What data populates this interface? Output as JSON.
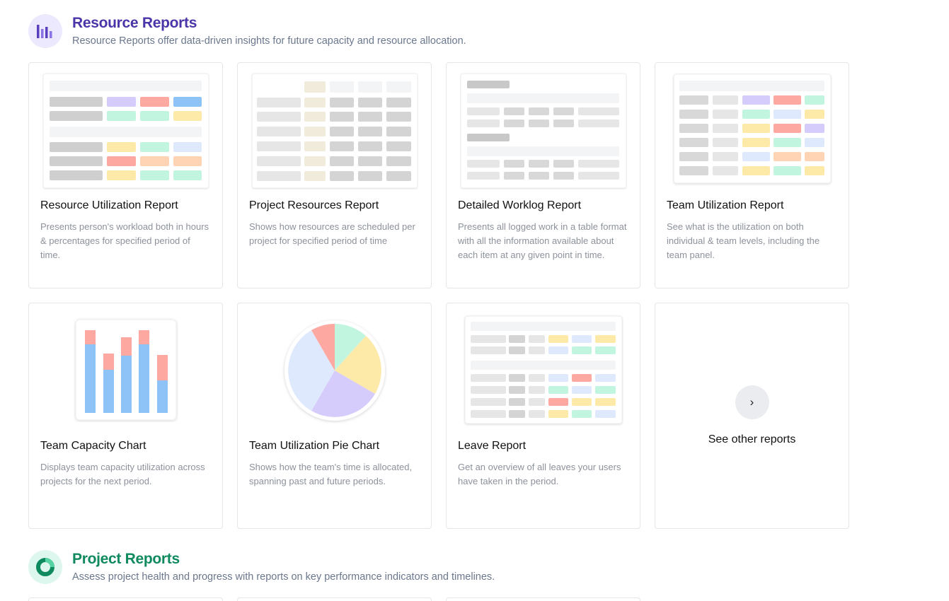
{
  "resource_section": {
    "title": "Resource Reports",
    "description": "Resource Reports offer data-driven insights for future capacity and resource allocation.",
    "title_color": "#4c35a8",
    "icon": "bar-chart-icon"
  },
  "resource_cards": [
    {
      "title": "Resource Utilization Report",
      "description": "Presents person's workload both in hours & percentages for specified period of time."
    },
    {
      "title": "Project Resources Report",
      "description": "Shows how resources are scheduled per project for specified period of time"
    },
    {
      "title": "Detailed Worklog Report",
      "description": "Presents all logged work in a table format with all the information available about each item at any given point in time."
    },
    {
      "title": "Team Utilization Report",
      "description": "See what is the utilization on both individual & team levels, including the team panel."
    },
    {
      "title": "Team Capacity Chart",
      "description": "Displays team capacity utilization across projects for the next period."
    },
    {
      "title": "Team Utilization Pie Chart",
      "description": "Shows how the team's time is allocated, spanning past and future periods."
    },
    {
      "title": "Leave Report",
      "description": "Get an overview of all leaves your users have taken in the period."
    }
  ],
  "see_other": {
    "label": "See other reports",
    "icon": "chevron-right-icon",
    "glyph": "›"
  },
  "project_section": {
    "title": "Project Reports",
    "description": "Assess project health and progress with reports on key performance indicators and timelines.",
    "title_color": "#0f8a5f",
    "icon": "donut-icon"
  },
  "colors": {
    "grey": "#cfcfcf",
    "light_grey": "#e6e6e6",
    "purple": "#d6ccfb",
    "red": "#fda9a2",
    "blue": "#8ec3f8",
    "light_blue": "#dfe9fd",
    "green": "#c2f5e0",
    "yellow": "#fde9a8",
    "orange": "#fed4b4",
    "beige": "#f1ebdc"
  }
}
